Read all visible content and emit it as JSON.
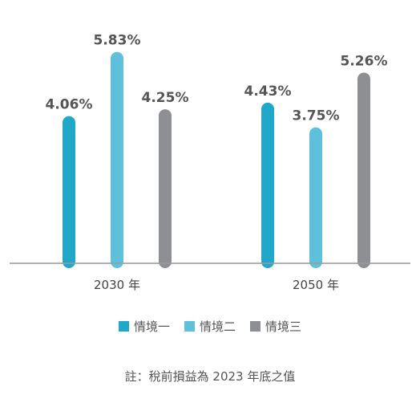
{
  "chart_data": {
    "type": "bar",
    "categories": [
      "2030 年",
      "2050 年"
    ],
    "series": [
      {
        "name": "情境一",
        "color": "#21a8c8",
        "values": [
          4.06,
          4.43
        ],
        "labels": [
          "4.06%",
          "4.43%"
        ]
      },
      {
        "name": "情境二",
        "color": "#5fc0dc",
        "values": [
          5.83,
          3.75
        ],
        "labels": [
          "5.83%",
          "3.75%"
        ]
      },
      {
        "name": "情境三",
        "color": "#8e8f93",
        "values": [
          4.25,
          5.26
        ],
        "labels": [
          "4.25%",
          "5.26%"
        ]
      }
    ],
    "ylim": [
      0,
      6.2
    ],
    "grid": false,
    "legend_position": "bottom",
    "note": "註：稅前損益為 2023 年底之值"
  }
}
